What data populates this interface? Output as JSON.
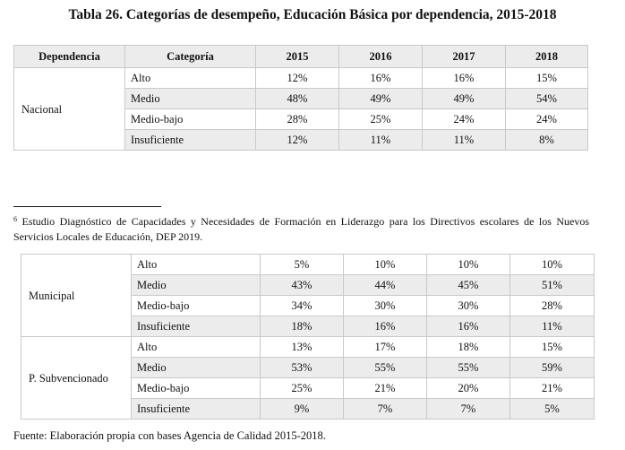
{
  "title": "Tabla 26. Categorías de desempeño, Educación Básica por dependencia, 2015-2018",
  "headers": {
    "dependencia": "Dependencia",
    "categoria": "Categoría",
    "years": [
      "2015",
      "2016",
      "2017",
      "2018"
    ]
  },
  "nacional": {
    "label": "Nacional",
    "rows": [
      {
        "cat": "Alto",
        "v": [
          "12%",
          "16%",
          "16%",
          "15%"
        ]
      },
      {
        "cat": "Medio",
        "v": [
          "48%",
          "49%",
          "49%",
          "54%"
        ]
      },
      {
        "cat": "Medio-bajo",
        "v": [
          "28%",
          "25%",
          "24%",
          "24%"
        ]
      },
      {
        "cat": "Insuficiente",
        "v": [
          "12%",
          "11%",
          "11%",
          "8%"
        ]
      }
    ]
  },
  "footnote": {
    "marker": "6",
    "text": "Estudio Diagnóstico de Capacidades y Necesidades de Formación en Liderazgo para los Directivos escolares de los Nuevos Servicios Locales de Educación, DEP 2019."
  },
  "municipal": {
    "label": "Municipal",
    "rows": [
      {
        "cat": "Alto",
        "v": [
          "5%",
          "10%",
          "10%",
          "10%"
        ]
      },
      {
        "cat": "Medio",
        "v": [
          "43%",
          "44%",
          "45%",
          "51%"
        ]
      },
      {
        "cat": "Medio-bajo",
        "v": [
          "34%",
          "30%",
          "30%",
          "28%"
        ]
      },
      {
        "cat": "Insuficiente",
        "v": [
          "18%",
          "16%",
          "16%",
          "11%"
        ]
      }
    ]
  },
  "subvencionado": {
    "label": "P. Subvencionado",
    "rows": [
      {
        "cat": "Alto",
        "v": [
          "13%",
          "17%",
          "18%",
          "15%"
        ]
      },
      {
        "cat": "Medio",
        "v": [
          "53%",
          "55%",
          "55%",
          "59%"
        ]
      },
      {
        "cat": "Medio-bajo",
        "v": [
          "25%",
          "21%",
          "20%",
          "21%"
        ]
      },
      {
        "cat": "Insuficiente",
        "v": [
          "9%",
          "7%",
          "7%",
          "5%"
        ]
      }
    ]
  },
  "source": "Fuente: Elaboración propia con bases Agencia de Calidad 2015-2018."
}
